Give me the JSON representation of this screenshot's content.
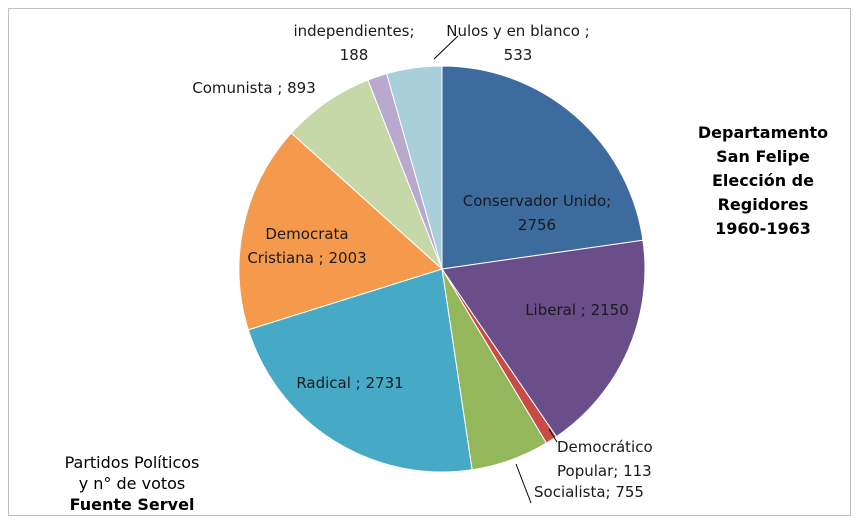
{
  "chart_data": {
    "type": "pie",
    "title_lines": [
      "Departamento",
      "San Felipe",
      "Elección de",
      "Regidores",
      "1960-1963"
    ],
    "caption_lines": [
      "Partidos Políticos",
      "y n° de votos"
    ],
    "caption_source": "Fuente Servel",
    "slices": [
      {
        "name": "Conservador Unido",
        "value": 2756,
        "color": "#3e6b9e",
        "label_lines": [
          "Conservador Unido;",
          "2756"
        ]
      },
      {
        "name": "Liberal",
        "value": 2150,
        "color": "#6a4e8a",
        "label_lines": [
          "Liberal ; 2150"
        ]
      },
      {
        "name": "Democrático Popular",
        "value": 113,
        "color": "#c84b45",
        "label_lines": [
          "Democrático",
          "Popular; 113"
        ]
      },
      {
        "name": "Socialista",
        "value": 755,
        "color": "#93b75a",
        "label_lines": [
          "Socialista; 755"
        ]
      },
      {
        "name": "Radical",
        "value": 2731,
        "color": "#46aac6",
        "label_lines": [
          "Radical ; 2731"
        ]
      },
      {
        "name": "Democrata Cristiana",
        "value": 2003,
        "color": "#f59a4c",
        "label_lines": [
          "Democrata",
          "Cristiana ; 2003"
        ]
      },
      {
        "name": "Comunista",
        "value": 893,
        "color": "#c6d8a8",
        "label_lines": [
          "Comunista ; 893"
        ]
      },
      {
        "name": "independientes",
        "value": 188,
        "color": "#b9a9cf",
        "label_lines": [
          "independientes;",
          "188"
        ]
      },
      {
        "name": "Nulos y en blanco",
        "value": 533,
        "color": "#a9cfdb",
        "label_lines": [
          "Nulos y en blanco ;",
          "533"
        ]
      }
    ]
  }
}
